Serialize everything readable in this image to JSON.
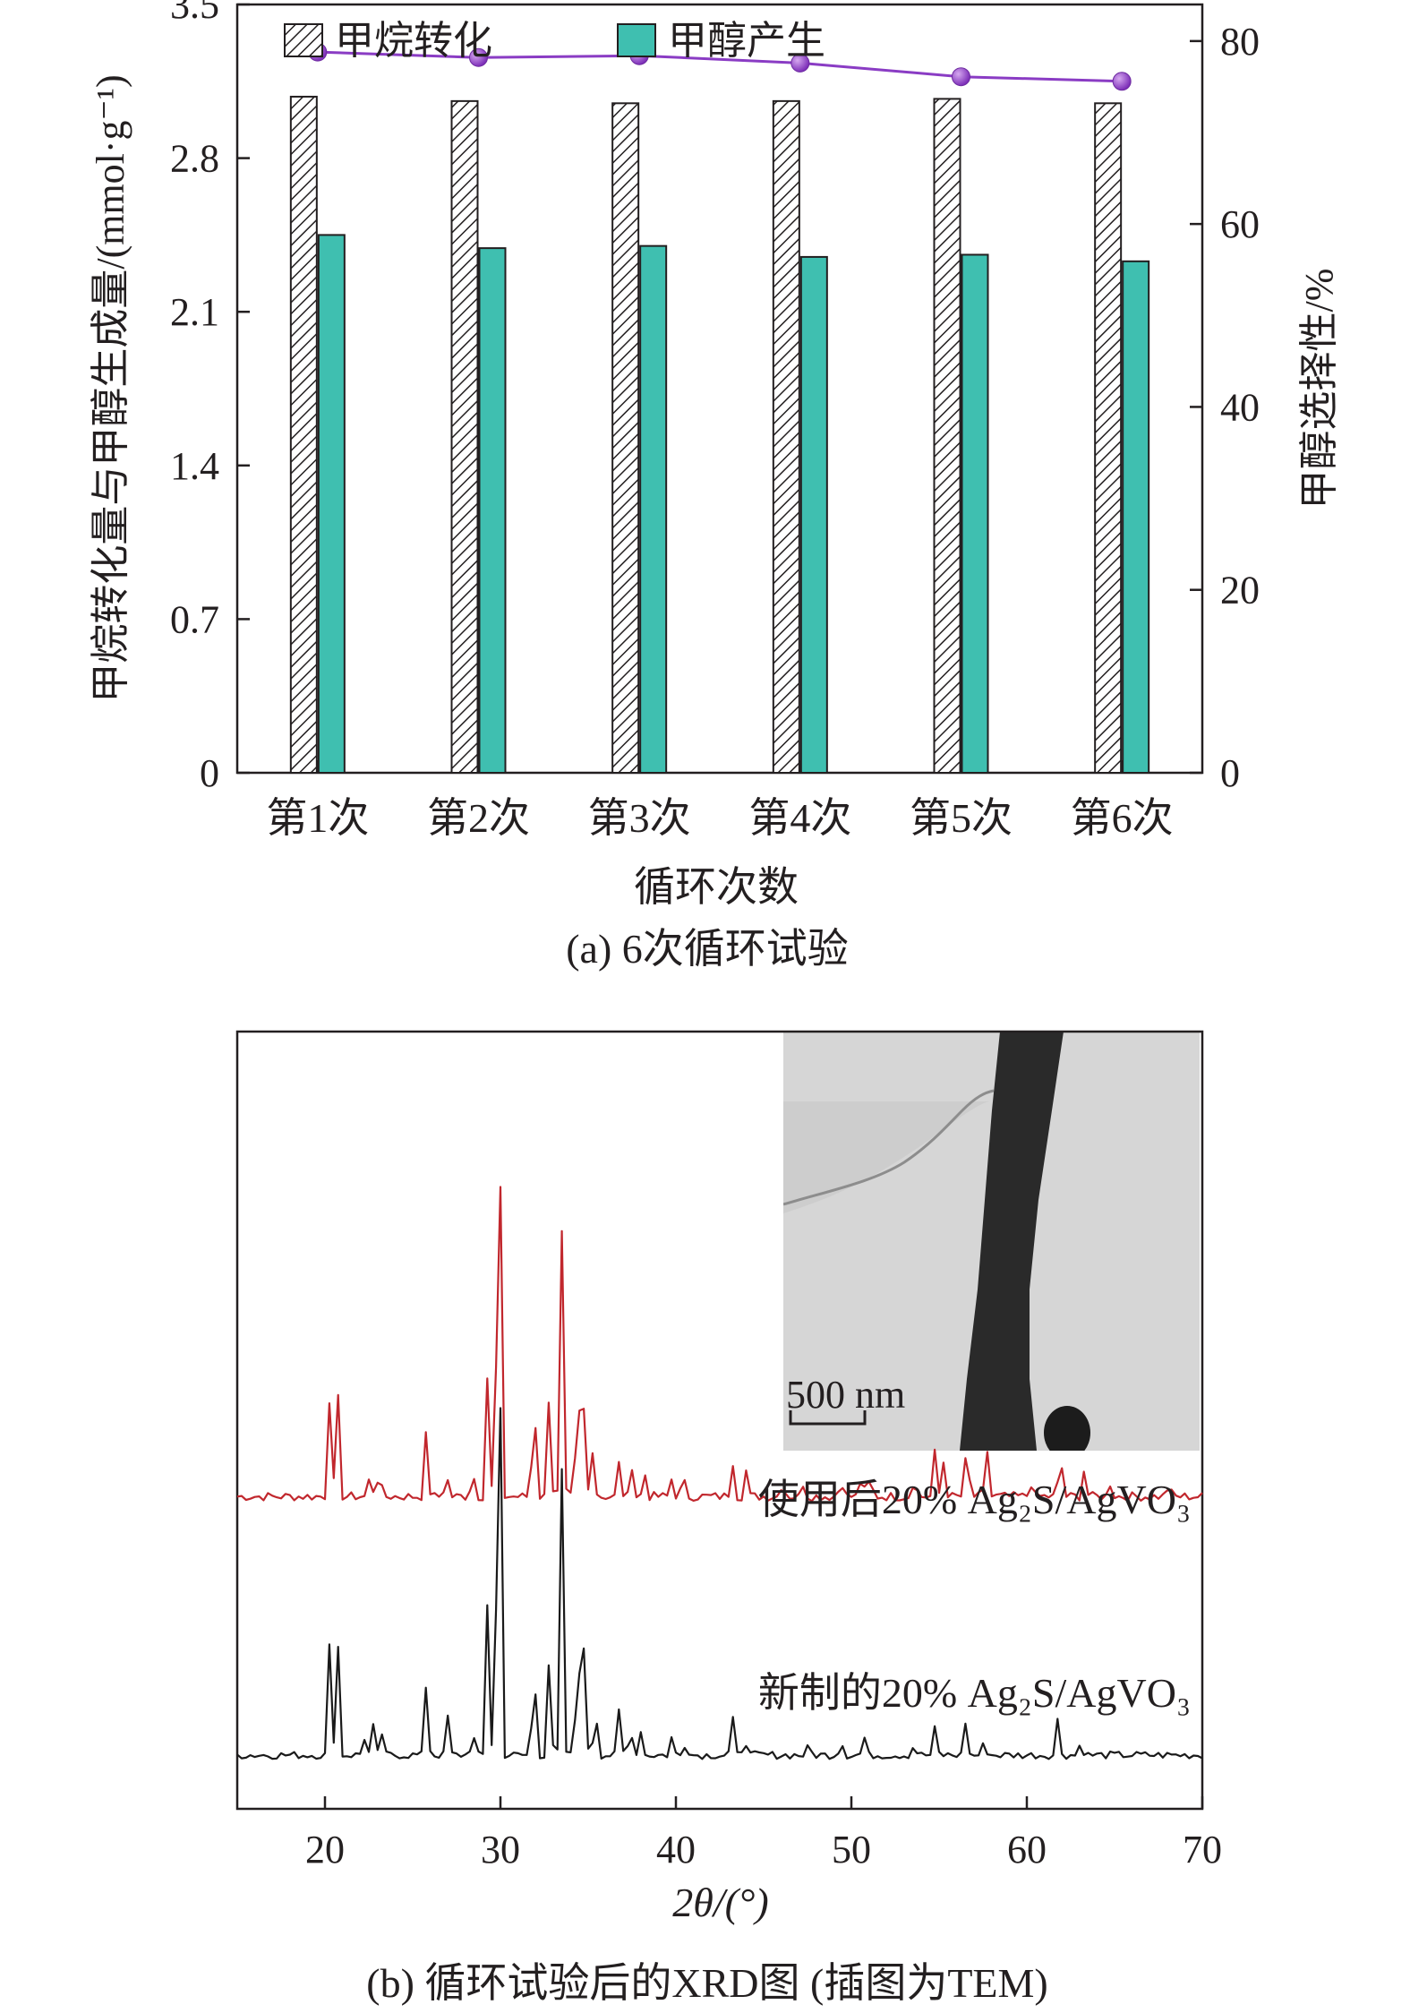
{
  "colors": {
    "ink": "#231f20",
    "methanol_bar": "#3fbfb0",
    "selectivity": "#8a3cc4",
    "selectivity_marker": "#9b4fd0",
    "xrd_used": "#c1272d",
    "xrd_fresh": "#1a1a1a",
    "tem_bg": "#d6d6d6",
    "tem_fiber": "#2a2a2a"
  },
  "panel_a": {
    "caption": "(a) 6次循环试验",
    "xlabel": "循环次数",
    "ylabel_left": "甲烷转化量与甲醇生成量/(mmol·g⁻¹)",
    "ylabel_right": "甲醇选择性/%",
    "yticks_left": [
      "0",
      "0.7",
      "1.4",
      "2.1",
      "2.8",
      "3.5"
    ],
    "yticks_right": [
      "0",
      "20",
      "40",
      "60",
      "80"
    ]
  },
  "panel_b": {
    "caption": "(b) 循环试验后的XRD图 (插图为TEM)",
    "xlabel": "2θ/(°)",
    "xticks": [
      "20",
      "30",
      "40",
      "50",
      "60",
      "70"
    ],
    "label_used": "使用后20% Ag₂S/AgVO₃",
    "label_fresh": "新制的20% Ag₂S/AgVO₃",
    "inset_icon": "tem-micrograph",
    "scale_bar": "500 nm"
  },
  "chart_data": [
    {
      "type": "bar",
      "categories": [
        "第1次",
        "第2次",
        "第3次",
        "第4次",
        "第5次",
        "第6次"
      ],
      "series": [
        {
          "name": "甲烷转化",
          "axis": "left",
          "pattern": "hatched",
          "values": [
            3.08,
            3.06,
            3.05,
            3.06,
            3.07,
            3.05
          ]
        },
        {
          "name": "甲醇产生",
          "axis": "left",
          "values": [
            2.45,
            2.39,
            2.4,
            2.35,
            2.36,
            2.33
          ]
        },
        {
          "type": "line",
          "axis": "right",
          "values": [
            78.8,
            78.2,
            78.4,
            77.6,
            76.1,
            75.6
          ]
        }
      ],
      "ylim_left": [
        0,
        3.5
      ],
      "ylim_right": [
        0,
        84
      ],
      "legend": "top-left"
    },
    {
      "type": "line",
      "xlim": [
        15,
        70
      ],
      "x_step": 0.25,
      "y_ticks_shown": false,
      "series": [
        {
          "name": "使用后20% Ag₂S/AgVO₃",
          "offset": 1.0,
          "baseline": 0.32,
          "noise": 0.035,
          "peaks": [
            [
              20.3,
              0.45
            ],
            [
              20.7,
              0.45
            ],
            [
              22.6,
              0.12
            ],
            [
              23.1,
              0.13
            ],
            [
              25.8,
              0.28
            ],
            [
              26.9,
              0.12
            ],
            [
              28.4,
              0.14
            ],
            [
              29.3,
              0.55
            ],
            [
              29.9,
              2.38
            ],
            [
              31.9,
              0.55
            ],
            [
              32.8,
              0.45
            ],
            [
              33.5,
              1.02
            ],
            [
              34.4,
              0.65
            ],
            [
              34.8,
              0.4
            ],
            [
              35.3,
              0.22
            ],
            [
              36.8,
              0.15
            ],
            [
              37.5,
              0.12
            ],
            [
              38.2,
              0.1
            ],
            [
              39.8,
              0.08
            ],
            [
              40.4,
              0.1
            ],
            [
              43.2,
              0.16
            ],
            [
              44.0,
              0.1
            ],
            [
              46.1,
              0.08
            ],
            [
              47.3,
              0.06
            ],
            [
              49.4,
              0.1
            ],
            [
              50.6,
              0.11
            ],
            [
              51.1,
              0.1
            ],
            [
              53.6,
              0.1
            ],
            [
              54.8,
              0.2
            ],
            [
              55.3,
              0.16
            ],
            [
              56.6,
              0.27
            ],
            [
              57.7,
              0.21
            ],
            [
              60.2,
              0.06
            ],
            [
              61.9,
              0.22
            ],
            [
              63.3,
              0.12
            ],
            [
              64.8,
              0.06
            ],
            [
              68.1,
              0.06
            ]
          ]
        },
        {
          "name": "新制的20% Ag₂S/AgVO₃",
          "offset": 0.0,
          "baseline": 0.0,
          "noise": 0.03,
          "peaks": [
            [
              20.3,
              0.5
            ],
            [
              20.7,
              0.5
            ],
            [
              22.2,
              0.08
            ],
            [
              22.7,
              0.13
            ],
            [
              23.2,
              0.1
            ],
            [
              25.8,
              0.32
            ],
            [
              27.0,
              0.15
            ],
            [
              28.4,
              0.12
            ],
            [
              29.3,
              0.7
            ],
            [
              29.9,
              2.7
            ],
            [
              31.9,
              0.48
            ],
            [
              32.8,
              0.42
            ],
            [
              33.5,
              1.1
            ],
            [
              34.4,
              0.66
            ],
            [
              34.8,
              0.48
            ],
            [
              35.4,
              0.26
            ],
            [
              36.8,
              0.2
            ],
            [
              37.4,
              0.16
            ],
            [
              38.0,
              0.1
            ],
            [
              39.8,
              0.08
            ],
            [
              40.6,
              0.08
            ],
            [
              43.2,
              0.16
            ],
            [
              43.9,
              0.1
            ],
            [
              47.6,
              0.05
            ],
            [
              49.4,
              0.08
            ],
            [
              50.7,
              0.08
            ],
            [
              53.6,
              0.06
            ],
            [
              54.8,
              0.12
            ],
            [
              56.5,
              0.13
            ],
            [
              57.6,
              0.07
            ],
            [
              61.8,
              0.16
            ],
            [
              63.1,
              0.07
            ]
          ]
        }
      ]
    }
  ]
}
